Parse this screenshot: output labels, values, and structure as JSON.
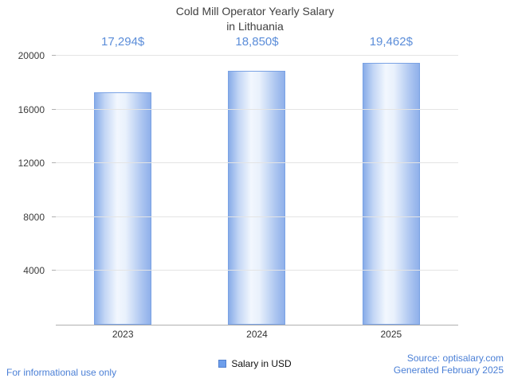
{
  "title": {
    "line1": "Cold Mill Operator Yearly Salary",
    "line2": "in Lithuania"
  },
  "chart_data": {
    "type": "bar",
    "title": "Cold Mill Operator Yearly Salary in Lithuania",
    "categories": [
      "2023",
      "2024",
      "2025"
    ],
    "values": [
      17294,
      18850,
      19462
    ],
    "value_labels": [
      "17,294$",
      "18,850$",
      "19,462$"
    ],
    "series_name": "Salary in USD",
    "xlabel": "",
    "ylabel": "",
    "ylim": [
      0,
      20000
    ],
    "yticks": [
      4000,
      8000,
      12000,
      16000,
      20000
    ],
    "grid": true,
    "legend_label": "Salary in USD",
    "legend_position": "bottom",
    "bar_color": "#88ace8",
    "bar_border_color": "#7aa2e4",
    "value_label_color": "#5b8dd9"
  },
  "footer": {
    "left": "For informational use only",
    "source": "Source: optisalary.com",
    "generated": "Generated February 2025"
  },
  "colors": {
    "accent_blue": "#4a7fd6",
    "title_text": "#404040",
    "gridline": "#e4e4e4",
    "axis": "#b0b0b0"
  }
}
